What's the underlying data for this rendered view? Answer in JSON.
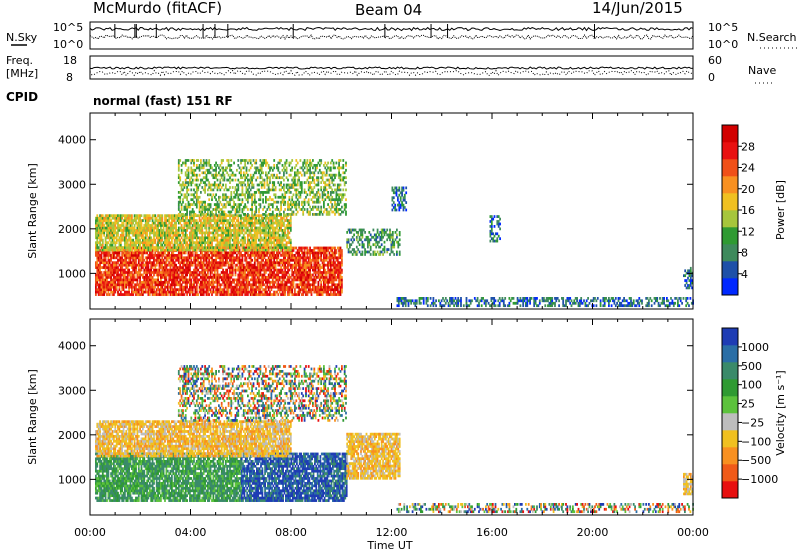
{
  "header": {
    "station": "McMurdo (fitACF)",
    "beam": "Beam 04",
    "date": "14/Jun/2015"
  },
  "noise_panel": {
    "left_label": "N.Sky",
    "right_label": "N.Search",
    "left_ticks": [
      "10^5",
      "10^0"
    ],
    "right_ticks": [
      "10^5",
      "10^0"
    ]
  },
  "freq_panel": {
    "left_label_1": "Freq.",
    "left_label_2": "[MHz]",
    "left_ticks": [
      "18",
      "8"
    ],
    "right_label": "Nave",
    "right_ticks": [
      "60",
      "0"
    ]
  },
  "cpid": {
    "label": "CPID",
    "program": "normal (fast) 151 RF"
  },
  "chart_data": [
    {
      "type": "heatmap",
      "name": "power",
      "title": "",
      "xlabel": "",
      "ylabel": "Slant Range [km]",
      "ylim": [
        200,
        4600
      ],
      "y_ticks": [
        "1000",
        "2000",
        "3000",
        "4000"
      ],
      "x_range_hours": [
        0,
        24
      ],
      "colorbar": {
        "label": "Power [dB]",
        "ticks": [
          "4",
          "8",
          "12",
          "16",
          "20",
          "24",
          "28"
        ],
        "colors": [
          "#0028ff",
          "#1e50a8",
          "#3e8a5c",
          "#2f9a32",
          "#a6c63c",
          "#f0c020",
          "#f89020",
          "#f05018",
          "#e81010",
          "#d20000"
        ]
      },
      "echo_regions": [
        {
          "t0": 0.2,
          "t1": 10.0,
          "r0": 500,
          "r1": 1550,
          "level": 8
        },
        {
          "t0": 0.2,
          "t1": 8.0,
          "r0": 1500,
          "r1": 2300,
          "level": 5
        },
        {
          "t0": 3.5,
          "t1": 10.2,
          "r0": 2300,
          "r1": 3550,
          "level": 4
        },
        {
          "t0": 10.2,
          "t1": 12.3,
          "r0": 1400,
          "r1": 2000,
          "level": 3
        },
        {
          "t0": 12.2,
          "t1": 24.0,
          "r0": 250,
          "r1": 450,
          "level": 2
        },
        {
          "t0": 12.0,
          "t1": 12.6,
          "r0": 2400,
          "r1": 2900,
          "level": 2
        },
        {
          "t0": 15.9,
          "t1": 16.3,
          "r0": 1700,
          "r1": 2300,
          "level": 2
        },
        {
          "t0": 23.6,
          "t1": 23.95,
          "r0": 650,
          "r1": 1100,
          "level": 2
        }
      ]
    },
    {
      "type": "heatmap",
      "name": "velocity",
      "title": "",
      "xlabel": "Time UT",
      "ylabel": "Slant Range [km]",
      "ylim": [
        200,
        4600
      ],
      "y_ticks": [
        "1000",
        "2000",
        "3000",
        "4000"
      ],
      "x_ticks": [
        "00:00",
        "04:00",
        "08:00",
        "12:00",
        "16:00",
        "20:00",
        "00:00"
      ],
      "x_range_hours": [
        0,
        24
      ],
      "colorbar": {
        "label": "Velocity [m s⁻¹]",
        "ticks": [
          "1000",
          "500",
          "100",
          "25",
          "−25",
          "−100",
          "−500",
          "−1000"
        ],
        "colors": [
          "#1e3cb4",
          "#2a6ea6",
          "#3a8a6a",
          "#2f9a32",
          "#5cc23c",
          "#bdbdbd",
          "#f0c020",
          "#f89020",
          "#f05a18",
          "#e81010"
        ]
      },
      "echo_regions": [
        {
          "t0": 0.2,
          "t1": 6.0,
          "r0": 500,
          "r1": 1550,
          "level": "green"
        },
        {
          "t0": 6.0,
          "t1": 10.2,
          "r0": 500,
          "r1": 1550,
          "level": "blue"
        },
        {
          "t0": 0.2,
          "t1": 8.0,
          "r0": 1500,
          "r1": 2300,
          "level": "orange"
        },
        {
          "t0": 3.5,
          "t1": 10.2,
          "r0": 2300,
          "r1": 3550,
          "level": "mixed"
        },
        {
          "t0": 10.2,
          "t1": 12.3,
          "r0": 1000,
          "r1": 2000,
          "level": "orange"
        },
        {
          "t0": 12.2,
          "t1": 24.0,
          "r0": 250,
          "r1": 450,
          "level": "mixed"
        },
        {
          "t0": 23.6,
          "t1": 23.95,
          "r0": 650,
          "r1": 1100,
          "level": "orange"
        }
      ]
    }
  ]
}
